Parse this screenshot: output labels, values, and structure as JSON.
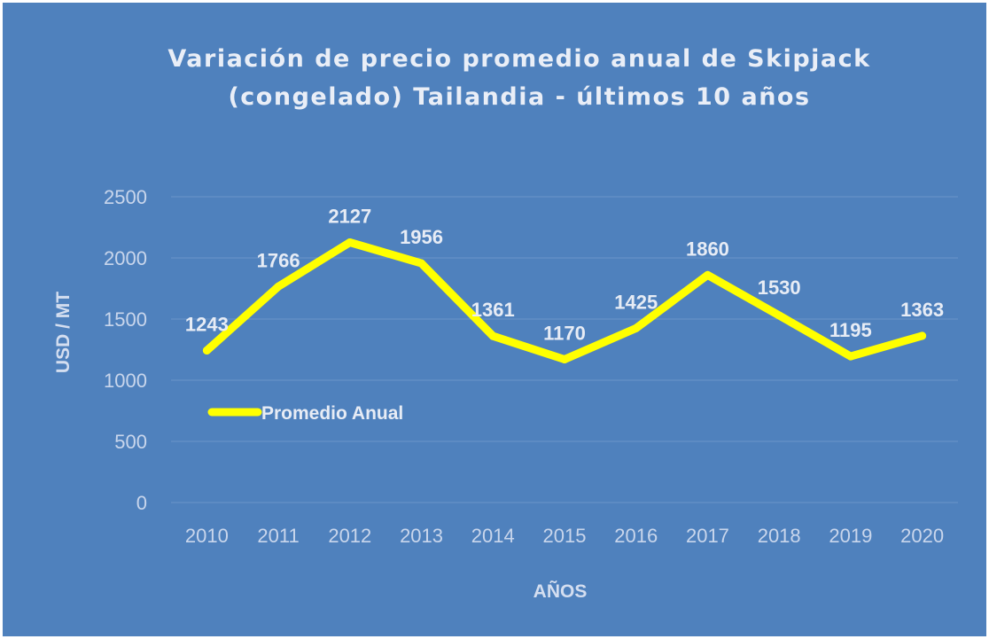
{
  "chart_data": {
    "type": "line",
    "title_lines": [
      "Variación  de precio promedio anual de Skipjack",
      "(congelado) Tailandia - últimos 10 años"
    ],
    "xlabel": "AÑOS",
    "ylabel": "USD / MT",
    "categories": [
      "2010",
      "2011",
      "2012",
      "2013",
      "2014",
      "2015",
      "2016",
      "2017",
      "2018",
      "2019",
      "2020"
    ],
    "series": [
      {
        "name": "Promedio Anual",
        "values": [
          1243,
          1766,
          2127,
          1956,
          1361,
          1170,
          1425,
          1860,
          1530,
          1195,
          1363
        ],
        "color": "#ffff00"
      }
    ],
    "yticks": [
      0,
      500,
      1000,
      1500,
      2000,
      2500
    ],
    "ylim": [
      0,
      2500
    ],
    "grid": true,
    "legend_position": "left-middle",
    "background_color": "#4f81bd",
    "gridline_color": "#6b95c9"
  }
}
